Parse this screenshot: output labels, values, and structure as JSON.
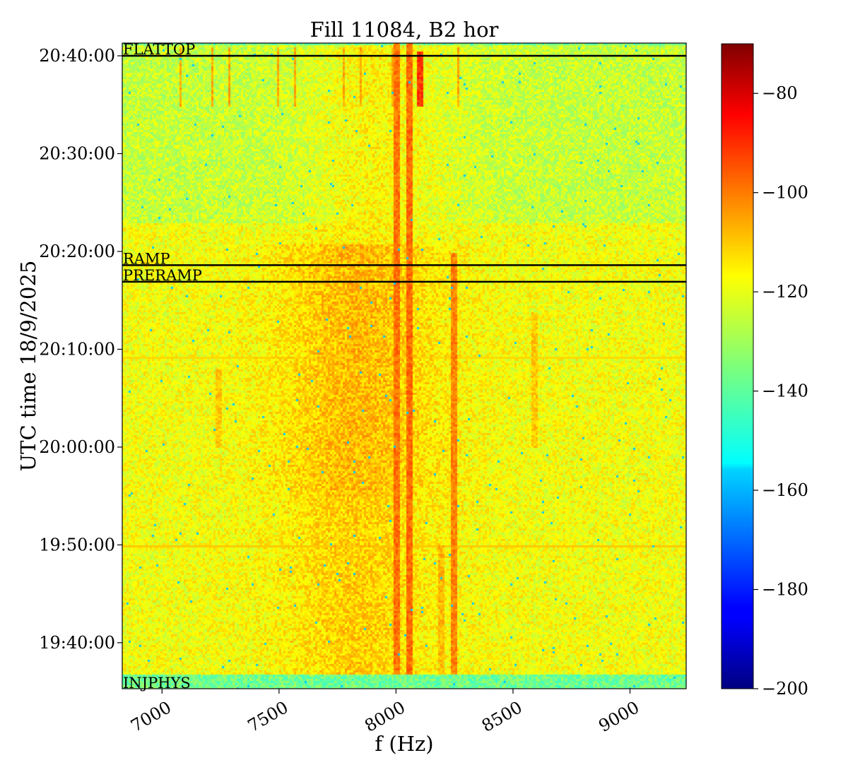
{
  "chart_data": {
    "type": "heatmap",
    "title": "Fill 11084, B2 hor",
    "xlabel": "f (Hz)",
    "ylabel": "UTC time 18/9/2025",
    "xlim": [
      6830,
      9240
    ],
    "ylim_minutes": [
      -24.7,
      41.3
    ],
    "x_ticks": [
      {
        "value": 7000,
        "label": "7000"
      },
      {
        "value": 7500,
        "label": "7500"
      },
      {
        "value": 8000,
        "label": "8000"
      },
      {
        "value": 8500,
        "label": "8500"
      },
      {
        "value": 9000,
        "label": "9000"
      }
    ],
    "y_ticks": [
      {
        "value": -20,
        "label": "19:40:00"
      },
      {
        "value": -10,
        "label": "19:50:00"
      },
      {
        "value": 0,
        "label": "20:00:00"
      },
      {
        "value": 10,
        "label": "20:10:00"
      },
      {
        "value": 20,
        "label": "20:20:00"
      },
      {
        "value": 30,
        "label": "20:30:00"
      },
      {
        "value": 40,
        "label": "20:40:00"
      }
    ],
    "colorbar": {
      "colormap": "jet",
      "range": [
        -200,
        -70
      ],
      "ticks": [
        {
          "value": -80,
          "label": "−80"
        },
        {
          "value": -100,
          "label": "−100"
        },
        {
          "value": -120,
          "label": "−120"
        },
        {
          "value": -140,
          "label": "−140"
        },
        {
          "value": -160,
          "label": "−160"
        },
        {
          "value": -180,
          "label": "−180"
        },
        {
          "value": -200,
          "label": "−200"
        }
      ]
    },
    "events": [
      {
        "label": "FLATTOP",
        "time": 40.0
      },
      {
        "label": "RAMP",
        "time": 18.6
      },
      {
        "label": "PRERAMP",
        "time": 16.9
      },
      {
        "label": "INJPHYS",
        "time": -23.2
      }
    ],
    "spectral_lines": [
      {
        "f": 8000,
        "t_start": -23.2,
        "t_end": 41.3,
        "level": -101
      },
      {
        "f": 8050,
        "t_start": -23.2,
        "t_end": 41.3,
        "level": -100
      },
      {
        "f": 8100,
        "t_start": 35.0,
        "t_end": 40.5,
        "level": -93
      },
      {
        "f": 8245,
        "t_start": -23.2,
        "t_end": 20.0,
        "level": -103
      },
      {
        "f": 8190,
        "t_start": -23.2,
        "t_end": -10.0,
        "level": -110
      },
      {
        "f": 8590,
        "t_start": 0.0,
        "t_end": 14.0,
        "level": -112
      },
      {
        "f": 7240,
        "t_start": 0.0,
        "t_end": 8.0,
        "level": -112
      }
    ],
    "noise_floor": -120,
    "noise_floor_outside_fill": -137
  }
}
